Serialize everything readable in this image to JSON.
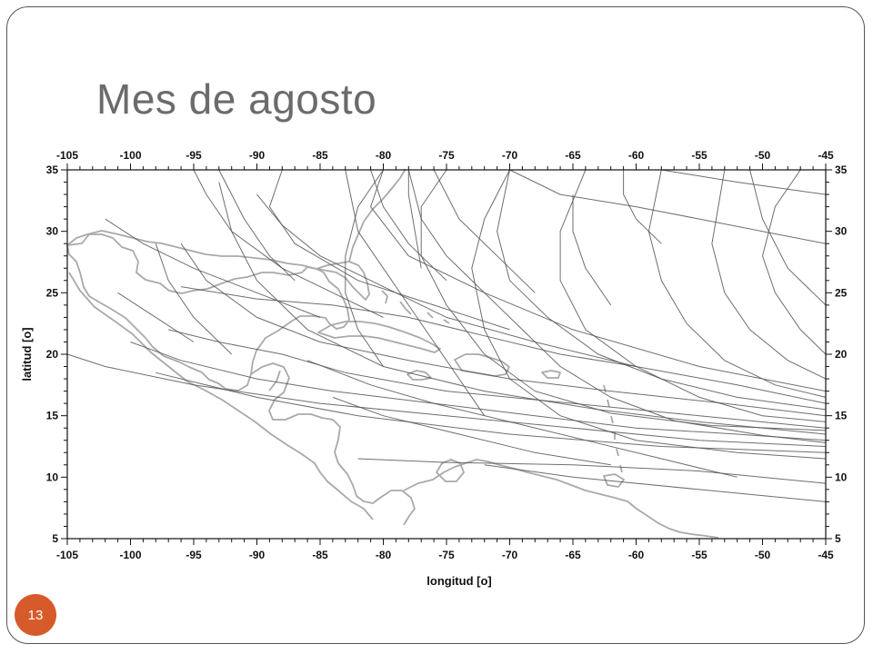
{
  "slide": {
    "title": "Mes de agosto",
    "number": "13",
    "accent_color": "#d75a2b",
    "title_color": "#6b6b6b"
  },
  "chart_data": {
    "type": "line",
    "xlabel": "longitud [o]",
    "ylabel": "latitud [o]",
    "xlim": [
      -105,
      -45
    ],
    "ylim": [
      5,
      35
    ],
    "x_ticks": [
      -105,
      -100,
      -95,
      -90,
      -85,
      -80,
      -75,
      -70,
      -65,
      -60,
      -55,
      -50,
      -45
    ],
    "y_ticks": [
      5,
      10,
      15,
      20,
      25,
      30,
      35
    ],
    "grid": false,
    "track_color": "#555555",
    "coast_color": "#a9a9a9",
    "tracks": [
      [
        [
          -45,
          17
        ],
        [
          -55,
          19
        ],
        [
          -65,
          22
        ],
        [
          -72,
          25
        ],
        [
          -78,
          28
        ],
        [
          -81,
          32
        ],
        [
          -80,
          35
        ]
      ],
      [
        [
          -45,
          16
        ],
        [
          -52,
          17.5
        ],
        [
          -60,
          19
        ],
        [
          -68,
          21
        ],
        [
          -75,
          23
        ],
        [
          -80,
          25.5
        ],
        [
          -85,
          28
        ],
        [
          -88,
          30.5
        ],
        [
          -90,
          33
        ]
      ],
      [
        [
          -45,
          15
        ],
        [
          -53,
          16
        ],
        [
          -62,
          17
        ],
        [
          -70,
          18
        ],
        [
          -78,
          19.5
        ],
        [
          -85,
          21
        ],
        [
          -90,
          23
        ],
        [
          -94,
          26
        ],
        [
          -96,
          29
        ]
      ],
      [
        [
          -45,
          14
        ],
        [
          -55,
          15
        ],
        [
          -65,
          16
        ],
        [
          -75,
          17
        ],
        [
          -83,
          18.5
        ],
        [
          -88,
          20
        ],
        [
          -93,
          21
        ],
        [
          -97,
          22
        ]
      ],
      [
        [
          -45,
          13.5
        ],
        [
          -55,
          14.5
        ],
        [
          -63,
          15.5
        ],
        [
          -72,
          17
        ],
        [
          -80,
          19
        ],
        [
          -86,
          22
        ],
        [
          -90,
          26
        ],
        [
          -92,
          30
        ],
        [
          -93,
          34
        ]
      ],
      [
        [
          -45,
          13
        ],
        [
          -52,
          13.5
        ],
        [
          -60,
          14
        ],
        [
          -68,
          15
        ],
        [
          -76,
          16
        ],
        [
          -84,
          17
        ],
        [
          -90,
          18
        ],
        [
          -96,
          19.5
        ],
        [
          -100,
          21
        ]
      ],
      [
        [
          -45,
          12.5
        ],
        [
          -55,
          13
        ],
        [
          -65,
          14
        ],
        [
          -75,
          15
        ],
        [
          -85,
          16
        ],
        [
          -95,
          17.5
        ],
        [
          -102,
          19
        ],
        [
          -105,
          20
        ]
      ],
      [
        [
          -45,
          12
        ],
        [
          -58,
          12.5
        ],
        [
          -70,
          13.5
        ],
        [
          -82,
          15
        ],
        [
          -90,
          16.5
        ],
        [
          -98,
          18.5
        ]
      ],
      [
        [
          -45,
          11.5
        ],
        [
          -52,
          12
        ],
        [
          -60,
          13
        ],
        [
          -66,
          15
        ],
        [
          -70,
          18
        ],
        [
          -72,
          22
        ],
        [
          -73,
          27
        ],
        [
          -72,
          31
        ],
        [
          -70,
          35
        ]
      ],
      [
        [
          -45,
          14.5
        ],
        [
          -50,
          15
        ],
        [
          -55,
          16.5
        ],
        [
          -60,
          19
        ],
        [
          -64,
          22
        ],
        [
          -66,
          26
        ],
        [
          -66,
          30
        ],
        [
          -64,
          35
        ]
      ],
      [
        [
          -45,
          16.5
        ],
        [
          -49,
          17.5
        ],
        [
          -53,
          19.5
        ],
        [
          -56,
          22.5
        ],
        [
          -58,
          26
        ],
        [
          -59,
          30
        ],
        [
          -58,
          35
        ]
      ],
      [
        [
          -45,
          18
        ],
        [
          -48,
          19.5
        ],
        [
          -51,
          22
        ],
        [
          -53,
          25
        ],
        [
          -54,
          29
        ],
        [
          -53,
          35
        ]
      ],
      [
        [
          -45,
          20
        ],
        [
          -47,
          22
        ],
        [
          -49,
          25
        ],
        [
          -50,
          28
        ],
        [
          -49,
          32
        ],
        [
          -47,
          35
        ]
      ],
      [
        [
          -45,
          13.8
        ],
        [
          -54,
          14.2
        ],
        [
          -62,
          15.2
        ],
        [
          -68,
          17
        ],
        [
          -72,
          20
        ],
        [
          -75,
          24
        ],
        [
          -77,
          28
        ],
        [
          -77,
          32
        ],
        [
          -75,
          35
        ]
      ],
      [
        [
          -45,
          15.5
        ],
        [
          -52,
          16.5
        ],
        [
          -58,
          18
        ],
        [
          -63,
          20
        ],
        [
          -67,
          23
        ],
        [
          -70,
          26
        ],
        [
          -71,
          30
        ],
        [
          -70,
          35
        ]
      ],
      [
        [
          -45,
          12.8
        ],
        [
          -50,
          13.4
        ],
        [
          -57,
          14.6
        ],
        [
          -62,
          16.5
        ],
        [
          -66,
          19
        ],
        [
          -69,
          22
        ],
        [
          -72,
          25
        ],
        [
          -75,
          28
        ],
        [
          -77,
          31
        ],
        [
          -78,
          35
        ]
      ],
      [
        [
          -52,
          10
        ],
        [
          -58,
          11.5
        ],
        [
          -64,
          13
        ],
        [
          -70,
          14.5
        ],
        [
          -76,
          16
        ],
        [
          -81,
          17.5
        ],
        [
          -86,
          19.5
        ]
      ],
      [
        [
          -62,
          11
        ],
        [
          -68,
          12
        ],
        [
          -74,
          13.5
        ],
        [
          -80,
          15
        ],
        [
          -84,
          16.5
        ]
      ],
      [
        [
          -45,
          9.5
        ],
        [
          -55,
          10.5
        ],
        [
          -65,
          11
        ],
        [
          -75,
          11.2
        ],
        [
          -82,
          11.5
        ]
      ],
      [
        [
          -45,
          8
        ],
        [
          -55,
          9
        ],
        [
          -65,
          10
        ],
        [
          -72,
          11
        ]
      ],
      [
        [
          -60,
          19
        ],
        [
          -66,
          20
        ],
        [
          -72,
          21.5
        ],
        [
          -78,
          23
        ],
        [
          -84,
          24
        ],
        [
          -90,
          24.5
        ],
        [
          -96,
          25.5
        ]
      ],
      [
        [
          -70,
          22
        ],
        [
          -76,
          24
        ],
        [
          -82,
          26
        ],
        [
          -87,
          29
        ],
        [
          -89,
          32
        ],
        [
          -88,
          35
        ]
      ],
      [
        [
          -75,
          26
        ],
        [
          -78,
          29
        ],
        [
          -80,
          32
        ],
        [
          -81,
          35
        ]
      ],
      [
        [
          -68,
          25
        ],
        [
          -71,
          28
        ],
        [
          -74,
          31
        ],
        [
          -76,
          35
        ]
      ],
      [
        [
          -80,
          23
        ],
        [
          -84,
          25
        ],
        [
          -88,
          27
        ],
        [
          -92,
          30
        ],
        [
          -94,
          33
        ],
        [
          -95,
          35
        ]
      ],
      [
        [
          -85,
          23
        ],
        [
          -90,
          25
        ],
        [
          -95,
          27
        ],
        [
          -99,
          29
        ],
        [
          -102,
          31
        ]
      ],
      [
        [
          -92,
          20
        ],
        [
          -95,
          23
        ],
        [
          -97,
          26
        ],
        [
          -98,
          29
        ]
      ],
      [
        [
          -87,
          26
        ],
        [
          -89,
          28
        ],
        [
          -91,
          31
        ],
        [
          -93,
          35
        ]
      ],
      [
        [
          -45,
          24
        ],
        [
          -48,
          27
        ],
        [
          -50,
          31
        ],
        [
          -51,
          35
        ]
      ],
      [
        [
          -45,
          29
        ],
        [
          -50,
          30
        ],
        [
          -55,
          31
        ],
        [
          -60,
          32
        ],
        [
          -66,
          33
        ],
        [
          -70,
          35
        ]
      ],
      [
        [
          -45,
          33
        ],
        [
          -52,
          34
        ],
        [
          -58,
          35
        ]
      ],
      [
        [
          -58,
          29
        ],
        [
          -60,
          31
        ],
        [
          -61,
          33
        ],
        [
          -61,
          35
        ]
      ],
      [
        [
          -62,
          24
        ],
        [
          -64,
          27
        ],
        [
          -65,
          30
        ],
        [
          -65,
          33
        ]
      ],
      [
        [
          -72,
          15
        ],
        [
          -74,
          18
        ],
        [
          -76,
          21
        ],
        [
          -78,
          24
        ],
        [
          -80,
          27
        ],
        [
          -82,
          30
        ],
        [
          -83,
          35
        ]
      ],
      [
        [
          -80,
          19
        ],
        [
          -82,
          22
        ],
        [
          -83,
          25
        ],
        [
          -83,
          28
        ],
        [
          -82,
          32
        ],
        [
          -80,
          35
        ]
      ],
      [
        [
          -95,
          21
        ],
        [
          -98,
          23
        ],
        [
          -101,
          25
        ]
      ],
      [
        [
          -77,
          27
        ],
        [
          -77.5,
          30
        ],
        [
          -78,
          33
        ],
        [
          -78,
          35
        ]
      ]
    ]
  }
}
